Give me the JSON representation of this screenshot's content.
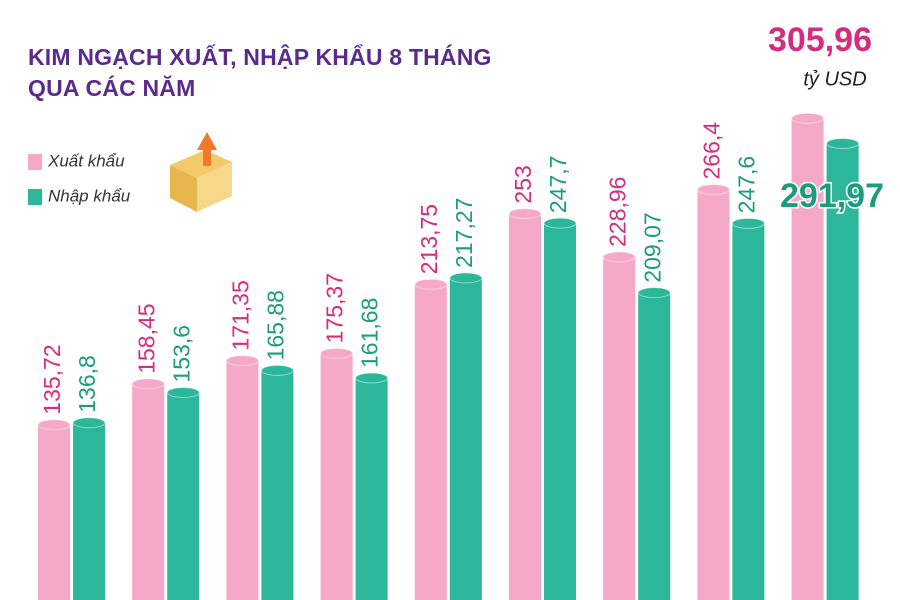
{
  "chart_data": {
    "type": "bar",
    "title": "KIM NGẠCH XUẤT, NHẬP KHẨU 8 THÁNG QUA CÁC NĂM",
    "unit": "tỷ USD",
    "categories": [
      null,
      null,
      null,
      null,
      null,
      null,
      null,
      null,
      null
    ],
    "series": [
      {
        "name": "Xuất khẩu",
        "color": "#f6a8c8",
        "label_color": "#d62c80",
        "values": [
          135.72,
          158.45,
          171.35,
          175.37,
          213.75,
          253,
          228.96,
          266.4,
          305.96
        ],
        "value_labels": [
          "135,72",
          "158,45",
          "171,35",
          "175,37",
          "213,75",
          "253",
          "228,96",
          "266,4",
          "305,96"
        ]
      },
      {
        "name": "Nhập khẩu",
        "color": "#2cb79b",
        "label_color": "#1c9c7c",
        "values": [
          136.8,
          153.6,
          165.88,
          161.68,
          217.27,
          247.7,
          209.07,
          247.6,
          291.97
        ],
        "value_labels": [
          "136,8",
          "153,6",
          "165,88",
          "161,68",
          "217,27",
          "247,7",
          "209,07",
          "247,6",
          "291,97"
        ]
      }
    ]
  }
}
